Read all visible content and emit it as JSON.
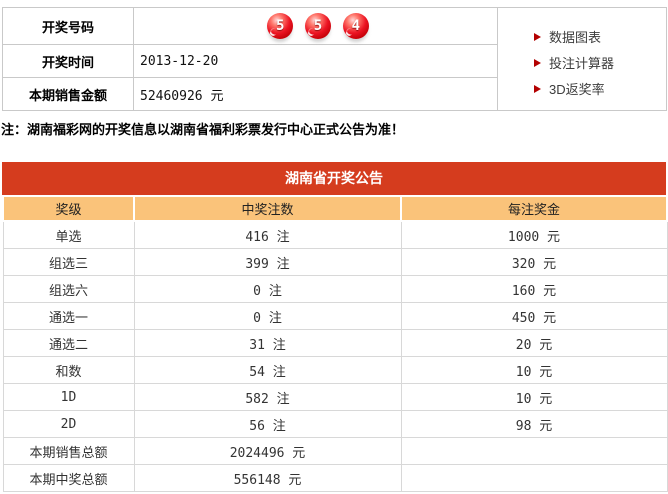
{
  "info_panel": {
    "rows": [
      {
        "label": "开奖号码"
      },
      {
        "label": "开奖时间",
        "value": "2013-12-20"
      },
      {
        "label": "本期销售金额",
        "value": "52460926 元"
      }
    ],
    "balls": [
      "5",
      "5",
      "4"
    ]
  },
  "quick_links": [
    {
      "label": "数据图表"
    },
    {
      "label": "投注计算器"
    },
    {
      "label": "3D返奖率"
    }
  ],
  "note": "注：湖南福彩网的开奖信息以湖南省福利彩票发行中心正式公告为准！",
  "announcement": {
    "title": "湖南省开奖公告",
    "columns": [
      "奖级",
      "中奖注数",
      "每注奖金"
    ],
    "rows": [
      [
        "单选",
        "416 注",
        "1000 元"
      ],
      [
        "组选三",
        "399 注",
        "320 元"
      ],
      [
        "组选六",
        "0 注",
        "160 元"
      ],
      [
        "通选一",
        "0 注",
        "450 元"
      ],
      [
        "通选二",
        "31 注",
        "20 元"
      ],
      [
        "和数",
        "54 注",
        "10 元"
      ],
      [
        "1D",
        "582 注",
        "10 元"
      ],
      [
        "2D",
        "56 注",
        "98 元"
      ],
      [
        "本期销售总额",
        "2024496 元",
        ""
      ],
      [
        "本期中奖总额",
        "556148 元",
        ""
      ]
    ]
  },
  "colors": {
    "title_bar_red": "#d53c1e",
    "header_row_orange": "#fac37a",
    "ball_red": "#ec1423",
    "link_arrow_red": "#b30101",
    "grid_border": "#d8d8d8"
  }
}
